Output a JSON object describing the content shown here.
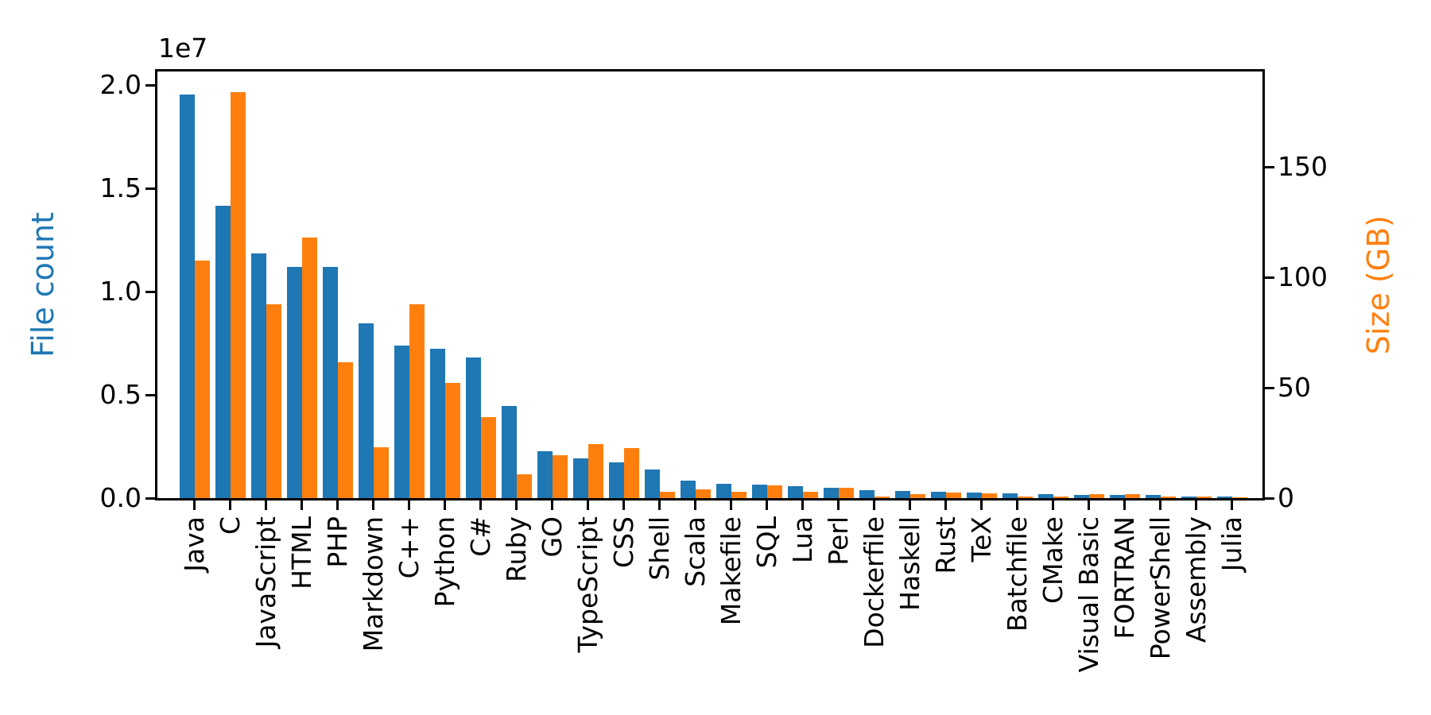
{
  "chart_data": {
    "type": "bar",
    "title": "",
    "categories": [
      "Java",
      "C",
      "JavaScript",
      "HTML",
      "PHP",
      "Markdown",
      "C++",
      "Python",
      "C#",
      "Ruby",
      "GO",
      "TypeScript",
      "CSS",
      "Shell",
      "Scala",
      "Makefile",
      "SQL",
      "Lua",
      "Perl",
      "Dockerfile",
      "Haskell",
      "Rust",
      "TeX",
      "Batchfile",
      "CMake",
      "Visual Basic",
      "FORTRAN",
      "PowerShell",
      "Assembly",
      "Julia"
    ],
    "series": [
      {
        "name": "File count",
        "axis": "left",
        "color": "#1f77b4",
        "values": [
          19548190,
          14143113,
          11839883,
          11178557,
          11177610,
          8464626,
          7380520,
          7226626,
          6811652,
          4473331,
          2265436,
          1940406,
          1734406,
          1385648,
          835755,
          679430,
          656671,
          578554,
          497949,
          366505,
          340240,
          322431,
          251015,
          236945,
          175282,
          155652,
          142038,
          136846,
          82905,
          58317
        ]
      },
      {
        "name": "Size (GB)",
        "axis": "right",
        "color": "#ff7f0e",
        "values": [
          107.7,
          183.83,
          87.82,
          118.12,
          61.41,
          23.09,
          87.73,
          52.03,
          36.83,
          10.95,
          19.28,
          24.59,
          22.67,
          3.01,
          3.87,
          2.92,
          5.67,
          2.81,
          4.7,
          0.71,
          1.85,
          2.68,
          2.15,
          0.7,
          0.54,
          1.91,
          1.62,
          0.69,
          0.78,
          0.29
        ]
      }
    ],
    "left_axis": {
      "label": "File count",
      "color": "#1f77b4",
      "offset_label": "1e7",
      "tick_labels": [
        "0.0",
        "0.5",
        "1.0",
        "1.5",
        "2.0"
      ],
      "tick_values": [
        0,
        5000000,
        10000000,
        15000000,
        20000000
      ],
      "range": [
        0,
        20650000
      ]
    },
    "right_axis": {
      "label": "Size (GB)",
      "color": "#ff7f0e",
      "tick_labels": [
        "0",
        "50",
        "100",
        "150"
      ],
      "tick_values": [
        0,
        50,
        100,
        150
      ],
      "range": [
        0,
        193
      ]
    },
    "x_axis": {
      "tick_label_rotation": 90
    },
    "grid": false,
    "legend": "none"
  }
}
